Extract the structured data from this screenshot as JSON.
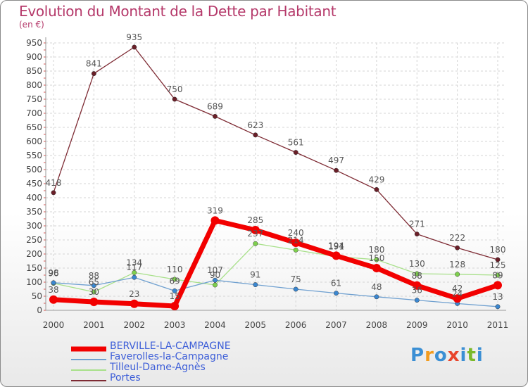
{
  "title": "Evolution du Montant de la Dette par Habitant",
  "unit_label": "(en €)",
  "brand": {
    "logo_letters": [
      "P",
      "r",
      "o",
      "x",
      "i",
      "t",
      "i"
    ],
    "logo_colors": [
      "#3b8fd4",
      "#f29c1f",
      "#3b8fd4",
      "#e8452c",
      "#3b8fd4",
      "#7ab929",
      "#3b8fd4"
    ]
  },
  "chart_data": {
    "type": "line",
    "x": [
      "2000",
      "2001",
      "2002",
      "2003",
      "2004",
      "2005",
      "2006",
      "2007",
      "2008",
      "2009",
      "2010",
      "2011"
    ],
    "ylim": [
      0,
      950
    ],
    "yticks": [
      0,
      50,
      100,
      150,
      200,
      250,
      300,
      350,
      400,
      450,
      500,
      550,
      600,
      650,
      700,
      750,
      800,
      850,
      900,
      950
    ],
    "grid": true,
    "legend_position": "bottom",
    "series": [
      {
        "name": "BERVILLE-LA-CAMPAGNE",
        "color": "#f20000",
        "point_color": "#f20000",
        "values": [
          38,
          30,
          23,
          15,
          319,
          285,
          240,
          194,
          150,
          88,
          42,
          89
        ],
        "labels": [
          "38",
          "30",
          "23",
          "15",
          "319",
          "285",
          "240",
          "194",
          "150",
          "88",
          "42",
          "89"
        ]
      },
      {
        "name": "Faverolles-la-Campagne",
        "color": "#6fa0d0",
        "point_color": "#3b87d0",
        "values": [
          98,
          88,
          117,
          69,
          107,
          91,
          75,
          61,
          48,
          36,
          24,
          13
        ],
        "labels": [
          "98",
          "88",
          "117",
          "69",
          "107",
          "91",
          "75",
          "61",
          "48",
          "36",
          "24",
          "13"
        ]
      },
      {
        "name": "Tilleul-Dame-Agnès",
        "color": "#a8e08a",
        "point_color": "#7ed04d",
        "values": [
          96,
          65,
          134,
          110,
          90,
          237,
          214,
          191,
          180,
          130,
          128,
          125
        ],
        "labels": [
          "96",
          "65",
          "134",
          "110",
          "90",
          "237",
          "214",
          "191",
          "180",
          "130",
          "128",
          "125"
        ]
      },
      {
        "name": "Portes",
        "color": "#7e2b34",
        "point_color": "#6a1f28",
        "values": [
          418,
          841,
          935,
          750,
          689,
          623,
          561,
          497,
          429,
          271,
          222,
          180
        ],
        "labels": [
          "418",
          "841",
          "935",
          "750",
          "689",
          "623",
          "561",
          "497",
          "429",
          "271",
          "222",
          "180"
        ]
      }
    ]
  }
}
